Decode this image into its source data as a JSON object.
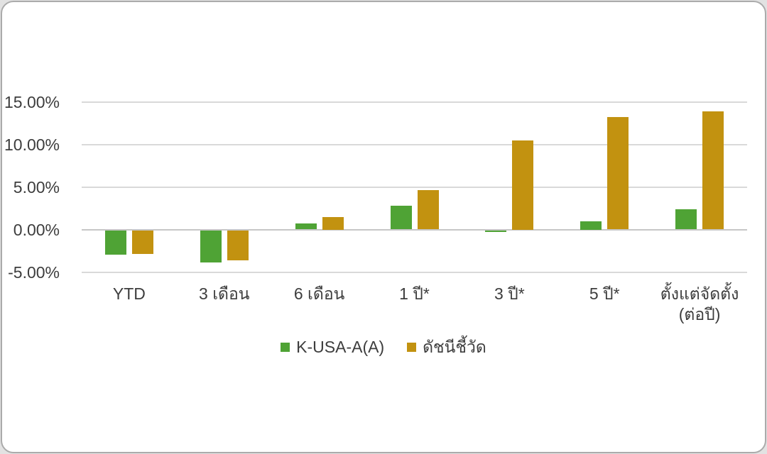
{
  "chart_data": {
    "type": "bar",
    "title": "",
    "categories": [
      "YTD",
      "3 เดือน",
      "6 เดือน",
      "1 ปี*",
      "3 ปี*",
      "5 ปี*",
      "ตั้งแต่จัดตั้ง\n(ต่อปี)"
    ],
    "series": [
      {
        "name": "K-USA-A(A)",
        "color": "#4FA335",
        "values": [
          -2.9,
          -3.8,
          0.7,
          2.8,
          -0.2,
          1.0,
          2.4
        ]
      },
      {
        "name": "ดัชนีชี้วัด",
        "color": "#C29210",
        "values": [
          -2.8,
          -3.5,
          1.5,
          4.6,
          10.5,
          13.2,
          13.9
        ]
      }
    ],
    "unit": "%",
    "y_axis": {
      "min": -5,
      "max": 15,
      "ticks": [
        15,
        10,
        5,
        0,
        -5
      ],
      "tick_labels": [
        "15.00%",
        "10.00%",
        "5.00%",
        "0.00%",
        "-5.00%"
      ]
    },
    "grid": true,
    "legend_position": "bottom"
  },
  "colors": {
    "grid": "#d9d9d9",
    "zero_line": "#c6c6c6",
    "text": "#3d3d3d",
    "card_background": "#ffffff",
    "card_border": "#ababab"
  }
}
